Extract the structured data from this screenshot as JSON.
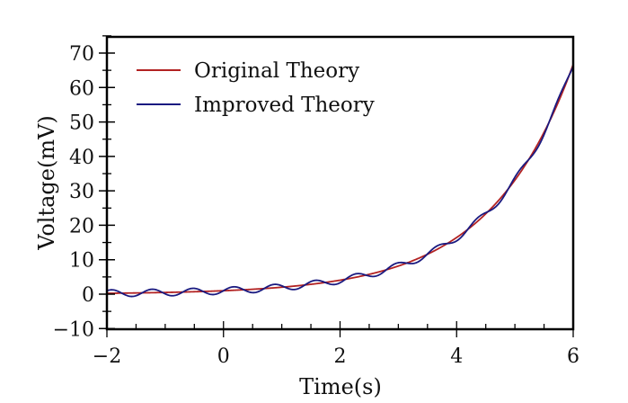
{
  "chart_data": {
    "type": "line",
    "title": "",
    "xlabel": "Time(s)",
    "ylabel": "Voltage(mV)",
    "xlim": [
      -2,
      6
    ],
    "ylim": [
      -10,
      75
    ],
    "xticks": [
      -2,
      0,
      2,
      4,
      6
    ],
    "xtick_labels": [
      "−2",
      "0",
      "2",
      "4",
      "6"
    ],
    "yticks": [
      -10,
      0,
      10,
      20,
      30,
      40,
      50,
      60,
      70
    ],
    "ytick_labels": [
      "−10",
      "0",
      "10",
      "20",
      "30",
      "40",
      "50",
      "60",
      "70"
    ],
    "grid": false,
    "legend_position": "upper left",
    "series": [
      {
        "name": "Original Theory",
        "color": "#b22222",
        "formula": "exp(0.7*x)",
        "x": [
          -2,
          -1,
          0,
          1,
          2,
          3,
          4,
          5,
          6
        ],
        "values": [
          0.25,
          0.5,
          1.0,
          2.0,
          4.1,
          8.2,
          16.4,
          33.1,
          66.7
        ]
      },
      {
        "name": "Improved Theory",
        "color": "#1a1a80",
        "formula": "exp(0.7*x) + sin(9*x)",
        "x": [
          -2,
          -1,
          0,
          1,
          2,
          3,
          4,
          5,
          6
        ],
        "values": [
          1.0,
          0.1,
          1.0,
          2.4,
          3.3,
          9.2,
          15.4,
          32.2,
          65.8
        ]
      }
    ]
  },
  "legend": {
    "items": [
      {
        "label": "Original Theory",
        "color": "#b22222"
      },
      {
        "label": "Improved Theory",
        "color": "#1a1a80"
      }
    ]
  },
  "axes": {
    "xlabel": "Time(s)",
    "ylabel": "Voltage(mV)"
  }
}
